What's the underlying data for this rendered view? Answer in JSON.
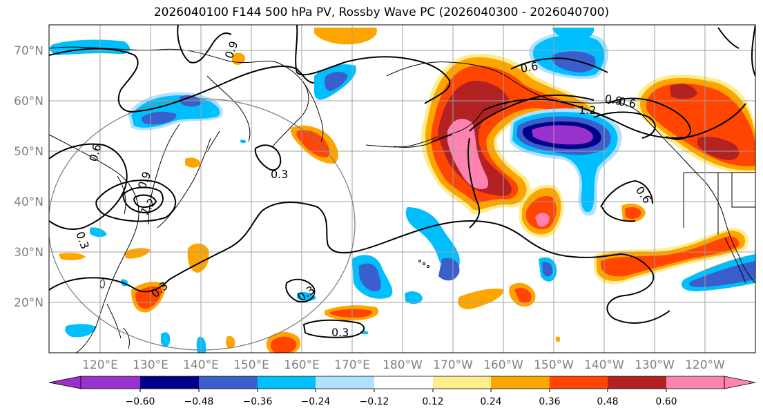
{
  "title": "2026040100 F144 500 hPa PV, Rossby Wave PC (2026040300 - 2026040700)",
  "lat_labels": [
    "70°N",
    "60°N",
    "50°N",
    "40°N",
    "30°N",
    "20°N"
  ],
  "lon_labels": [
    "120°E",
    "130°E",
    "140°E",
    "150°E",
    "160°E",
    "170°E",
    "180°W",
    "170°W",
    "160°W",
    "150°W",
    "140°W",
    "130°W",
    "120°W"
  ],
  "contour_labels": [
    "0.9",
    "0.6",
    "1.2",
    "0.9",
    "0.6",
    "0.3",
    "0.6",
    "0.9",
    "1.2",
    "0.3",
    "0.3",
    "0.3",
    "0.3",
    "0.6"
  ],
  "colorbar": {
    "ticks": [
      "−0.60",
      "−0.48",
      "−0.36",
      "−0.24",
      "−0.12",
      "0.12",
      "0.24",
      "0.36",
      "0.48",
      "0.60"
    ],
    "colors": [
      "#9932cc",
      "#00008b",
      "#3a5fcd",
      "#00bfff",
      "#b0e2ff",
      "#ffffff",
      "#ffec8b",
      "#ffa500",
      "#ff4500",
      "#b22222",
      "#ff83b0"
    ]
  },
  "colors": {
    "purple": "#9932cc",
    "navy": "#00008b",
    "blue": "#3a5fcd",
    "cyan": "#00bfff",
    "lightblue": "#b0e2ff",
    "yellow": "#ffec8b",
    "orange": "#ffa500",
    "redorange": "#ff4500",
    "darkred": "#b22222",
    "pink": "#ff83b0"
  }
}
